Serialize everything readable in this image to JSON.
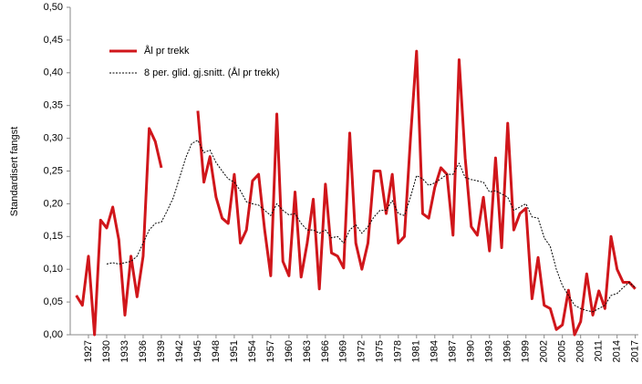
{
  "chart_data": {
    "type": "line",
    "ylabel": "Standardisert fangst",
    "x": [
      1925,
      1926,
      1927,
      1928,
      1929,
      1930,
      1931,
      1932,
      1933,
      1934,
      1935,
      1936,
      1937,
      1938,
      1939,
      1940,
      1941,
      1942,
      1943,
      1944,
      1945,
      1946,
      1947,
      1948,
      1949,
      1950,
      1951,
      1952,
      1953,
      1954,
      1955,
      1956,
      1957,
      1958,
      1959,
      1960,
      1961,
      1962,
      1963,
      1964,
      1965,
      1966,
      1967,
      1968,
      1969,
      1970,
      1971,
      1972,
      1973,
      1974,
      1975,
      1976,
      1977,
      1978,
      1979,
      1980,
      1981,
      1982,
      1983,
      1984,
      1985,
      1986,
      1987,
      1988,
      1989,
      1990,
      1991,
      1992,
      1993,
      1994,
      1995,
      1996,
      1997,
      1998,
      1999,
      2000,
      2001,
      2002,
      2003,
      2004,
      2005,
      2006,
      2007,
      2008,
      2009,
      2010,
      2011,
      2012,
      2013,
      2014,
      2015,
      2016,
      2017
    ],
    "series": [
      {
        "name": "Ål pr trekk",
        "color": "#d0161b",
        "style": "solid",
        "values": [
          0.06,
          0.045,
          0.12,
          0.0,
          0.175,
          0.163,
          0.195,
          0.145,
          0.03,
          0.12,
          0.058,
          0.12,
          0.315,
          0.295,
          0.255,
          null,
          null,
          null,
          null,
          null,
          0.342,
          0.233,
          0.272,
          0.21,
          0.178,
          0.17,
          0.245,
          0.14,
          0.16,
          0.235,
          0.245,
          0.16,
          0.09,
          0.337,
          0.112,
          0.09,
          0.218,
          0.088,
          0.14,
          0.207,
          0.07,
          0.23,
          0.125,
          0.12,
          0.102,
          0.308,
          0.14,
          0.1,
          0.14,
          0.25,
          0.25,
          0.185,
          0.245,
          0.14,
          0.15,
          0.3,
          0.433,
          0.185,
          0.178,
          0.225,
          0.255,
          0.245,
          0.152,
          0.42,
          0.27,
          0.165,
          0.152,
          0.21,
          0.128,
          0.27,
          0.133,
          0.323,
          0.16,
          0.185,
          0.193,
          0.055,
          0.118,
          0.045,
          0.04,
          0.008,
          0.015,
          0.068,
          0.0,
          0.02,
          0.093,
          0.03,
          0.067,
          0.04,
          0.15,
          0.1,
          0.08,
          0.08,
          0.07
        ]
      },
      {
        "name": "8 per. glid. gj.snitt. (Ål pr trekk)",
        "color": "#000000",
        "style": "dotted",
        "values": [
          null,
          null,
          null,
          null,
          null,
          0.108,
          0.11,
          0.108,
          0.11,
          0.112,
          0.12,
          0.14,
          0.16,
          0.17,
          0.172,
          0.19,
          0.21,
          0.24,
          0.27,
          0.292,
          0.297,
          0.278,
          0.282,
          0.263,
          0.25,
          0.238,
          0.233,
          0.22,
          0.203,
          0.2,
          0.198,
          0.19,
          0.182,
          0.2,
          0.19,
          0.183,
          0.185,
          0.17,
          0.16,
          0.16,
          0.155,
          0.16,
          0.148,
          0.15,
          0.14,
          0.16,
          0.168,
          0.155,
          0.165,
          0.18,
          0.19,
          0.19,
          0.205,
          0.185,
          0.182,
          0.21,
          0.243,
          0.238,
          0.228,
          0.232,
          0.238,
          0.245,
          0.245,
          0.262,
          0.24,
          0.237,
          0.235,
          0.233,
          0.218,
          0.22,
          0.215,
          0.21,
          0.19,
          0.195,
          0.2,
          0.18,
          0.178,
          0.148,
          0.135,
          0.1,
          0.075,
          0.06,
          0.045,
          0.04,
          0.037,
          0.035,
          0.04,
          0.045,
          0.06,
          0.063,
          0.072,
          0.08,
          0.072
        ]
      }
    ],
    "xlim": [
      1924,
      2017.5
    ],
    "xticks": [
      1927,
      1930,
      1933,
      1936,
      1939,
      1942,
      1945,
      1948,
      1951,
      1954,
      1957,
      1960,
      1963,
      1966,
      1969,
      1972,
      1975,
      1978,
      1981,
      1984,
      1987,
      1990,
      1993,
      1996,
      1999,
      2002,
      2005,
      2008,
      2011,
      2014,
      2017
    ],
    "ylim": [
      0,
      0.5
    ],
    "yticks": [
      {
        "value": 0,
        "label": "0,00"
      },
      {
        "value": 0.05,
        "label": "0,05"
      },
      {
        "value": 0.1,
        "label": "0,10"
      },
      {
        "value": 0.15,
        "label": "0,15"
      },
      {
        "value": 0.2,
        "label": "0,20"
      },
      {
        "value": 0.25,
        "label": "0,25"
      },
      {
        "value": 0.3,
        "label": "0,30"
      },
      {
        "value": 0.35,
        "label": "0,35"
      },
      {
        "value": 0.4,
        "label": "0,40"
      },
      {
        "value": 0.45,
        "label": "0,45"
      },
      {
        "value": 0.5,
        "label": "0,50"
      }
    ],
    "legend": "upper left"
  }
}
